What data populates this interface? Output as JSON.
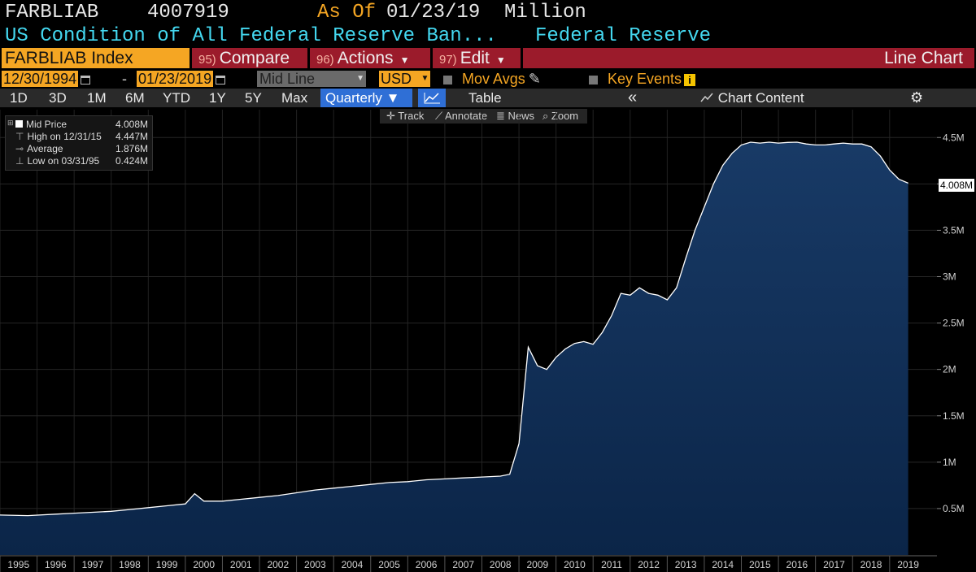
{
  "header": {
    "ticker": "FARBLIAB",
    "ticker_value": "4007919",
    "as_of_label": "As Of",
    "as_of_date": "01/23/19",
    "unit": "Million",
    "description": "US Condition of All Federal Reserve Ban...",
    "source": "Federal Reserve"
  },
  "commands": {
    "index": "FARBLIAB Index",
    "compare_key": "95)",
    "compare": "Compare",
    "actions_key": "96)",
    "actions": "Actions",
    "edit_key": "97)",
    "edit": "Edit",
    "view": "Line Chart"
  },
  "datebar": {
    "start": "12/30/1994",
    "dash": "-",
    "end": "01/23/2019",
    "price_field": "Mid Line",
    "currency": "USD",
    "mov_avgs": "Mov Avgs",
    "key_events": "Key Events",
    "info": "i"
  },
  "toolbar": {
    "ranges": [
      "1D",
      "3D",
      "1M",
      "6M",
      "YTD",
      "1Y",
      "5Y",
      "Max"
    ],
    "period": "Quarterly ▼",
    "table": "Table",
    "collapse": "«",
    "chart_content": "Chart Content",
    "settings": "⚙"
  },
  "subtools": {
    "track": "Track",
    "annotate": "Annotate",
    "news": "News",
    "zoom": "Zoom"
  },
  "legend": {
    "mid_price_label": "Mid Price",
    "mid_price_value": "4.008M",
    "high_label": "High on 12/31/15",
    "high_value": "4.447M",
    "avg_label": "Average",
    "avg_value": "1.876M",
    "low_label": "Low on 03/31/95",
    "low_value": "0.424M"
  },
  "colors": {
    "background": "#000000",
    "line": "#ffffff",
    "area_top": "#183a66",
    "area_bottom": "#0b2548",
    "orange": "#f5a623",
    "cyan": "#44d8f0",
    "red_bar": "#9b1b2b",
    "active_blue": "#2f6fd6"
  },
  "chart_data": {
    "type": "area",
    "ylim": [
      0,
      4.8
    ],
    "yticks": [
      {
        "value": 0.5,
        "label": "0.5M"
      },
      {
        "value": 1,
        "label": "1M"
      },
      {
        "value": 1.5,
        "label": "1.5M"
      },
      {
        "value": 2,
        "label": "2M"
      },
      {
        "value": 2.5,
        "label": "2.5M"
      },
      {
        "value": 3,
        "label": "3M"
      },
      {
        "value": 3.5,
        "label": "3.5M"
      },
      {
        "value": 4,
        "label": "4M"
      },
      {
        "value": 4.5,
        "label": "4.5M"
      }
    ],
    "xlim": [
      1994.5,
      2019.25
    ],
    "xticks": [
      1995,
      1996,
      1997,
      1998,
      1999,
      2000,
      2001,
      2002,
      2003,
      2004,
      2005,
      2006,
      2007,
      2008,
      2009,
      2010,
      2011,
      2012,
      2013,
      2014,
      2015,
      2016,
      2017,
      2018,
      2019
    ],
    "last_value_label": "4.008M",
    "x": [
      1994.5,
      1995.25,
      1996.0,
      1996.5,
      1997.0,
      1997.5,
      1998.0,
      1998.5,
      1999.0,
      1999.5,
      1999.75,
      2000.0,
      2000.5,
      2001.0,
      2001.5,
      2002.0,
      2002.5,
      2003.0,
      2003.5,
      2004.0,
      2004.5,
      2005.0,
      2005.5,
      2006.0,
      2006.5,
      2007.0,
      2007.5,
      2008.0,
      2008.25,
      2008.5,
      2008.75,
      2009.0,
      2009.25,
      2009.5,
      2009.75,
      2010.0,
      2010.25,
      2010.5,
      2010.75,
      2011.0,
      2011.25,
      2011.5,
      2011.75,
      2012.0,
      2012.25,
      2012.5,
      2012.75,
      2013.0,
      2013.25,
      2013.5,
      2013.75,
      2014.0,
      2014.25,
      2014.5,
      2014.75,
      2015.0,
      2015.25,
      2015.5,
      2015.75,
      2016.0,
      2016.25,
      2016.5,
      2016.75,
      2017.0,
      2017.25,
      2017.5,
      2017.75,
      2018.0,
      2018.25,
      2018.5,
      2018.75,
      2019.0
    ],
    "y": [
      0.43,
      0.424,
      0.44,
      0.45,
      0.46,
      0.47,
      0.49,
      0.51,
      0.53,
      0.55,
      0.66,
      0.58,
      0.58,
      0.6,
      0.62,
      0.64,
      0.67,
      0.7,
      0.72,
      0.74,
      0.76,
      0.78,
      0.79,
      0.81,
      0.82,
      0.83,
      0.84,
      0.85,
      0.87,
      1.2,
      2.24,
      2.04,
      2.0,
      2.13,
      2.22,
      2.28,
      2.3,
      2.27,
      2.4,
      2.58,
      2.82,
      2.8,
      2.88,
      2.82,
      2.8,
      2.75,
      2.88,
      3.2,
      3.5,
      3.75,
      4.0,
      4.2,
      4.33,
      4.42,
      4.45,
      4.44,
      4.45,
      4.44,
      4.447,
      4.45,
      4.43,
      4.42,
      4.42,
      4.43,
      4.44,
      4.43,
      4.43,
      4.4,
      4.3,
      4.15,
      4.05,
      4.008
    ]
  }
}
